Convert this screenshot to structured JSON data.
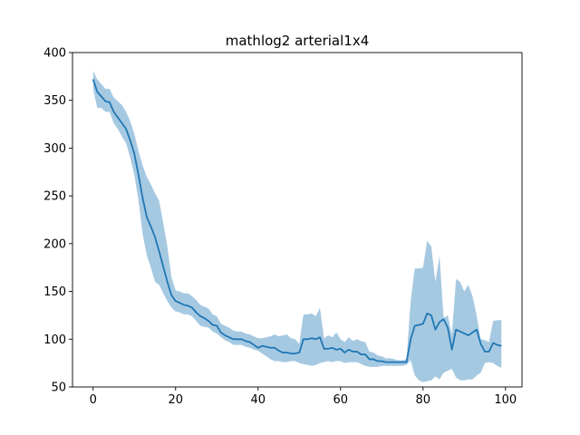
{
  "chart_data": {
    "type": "line",
    "title": "mathlog2 arterial1x4",
    "xlabel": "",
    "ylabel": "",
    "xlim": [
      -5,
      104
    ],
    "ylim": [
      50,
      400
    ],
    "grid": false,
    "xticks": [
      0,
      20,
      40,
      60,
      80,
      100
    ],
    "yticks": [
      50,
      100,
      150,
      200,
      250,
      300,
      350,
      400
    ],
    "line_color": "#1f77b4",
    "band_color": "#a6c9e2",
    "series": [
      {
        "x": [
          0,
          1,
          2,
          3,
          4,
          5,
          6,
          7,
          8,
          9,
          10,
          11,
          12,
          13,
          14,
          15,
          16,
          17,
          18,
          19,
          20,
          21,
          22,
          23,
          24,
          25,
          26,
          27,
          28,
          29,
          30,
          31,
          32,
          33,
          34,
          35,
          36,
          37,
          38,
          39,
          40,
          41,
          42,
          43,
          44,
          45,
          46,
          47,
          48,
          49,
          50,
          51,
          52,
          53,
          54,
          55,
          56,
          57,
          58,
          59,
          60,
          61,
          62,
          63,
          64,
          65,
          66,
          67,
          68,
          69,
          70,
          71,
          72,
          73,
          74,
          75,
          76,
          77,
          78,
          79,
          80,
          81,
          82,
          83,
          84,
          85,
          86,
          87,
          88,
          89,
          90,
          91,
          92,
          93,
          94,
          95,
          96,
          97,
          98,
          99
        ],
        "mean": [
          372,
          359,
          354,
          349,
          348,
          338,
          332,
          326,
          320,
          308,
          294,
          272,
          248,
          228,
          218,
          207,
          192,
          176,
          160,
          146,
          140,
          138,
          136,
          135,
          133,
          128,
          124,
          122,
          119,
          115,
          114,
          107,
          104,
          102,
          100,
          100,
          100,
          98,
          97,
          94,
          91,
          93,
          92,
          91,
          91,
          88,
          86,
          86,
          85,
          85,
          86,
          100,
          100,
          101,
          100,
          102,
          90,
          90,
          91,
          89,
          90,
          86,
          89,
          87,
          87,
          84,
          84,
          79,
          79,
          77,
          77,
          76,
          76,
          76,
          76,
          76,
          76,
          100,
          114,
          115,
          116,
          127,
          125,
          110,
          118,
          121,
          112,
          89,
          110,
          108,
          106,
          104,
          107,
          110,
          95,
          87,
          87,
          96,
          94,
          93
        ],
        "lower": [
          362,
          342,
          342,
          338,
          338,
          326,
          320,
          312,
          305,
          290,
          272,
          245,
          210,
          188,
          175,
          160,
          157,
          148,
          140,
          133,
          129,
          128,
          126,
          126,
          124,
          119,
          114,
          113,
          112,
          108,
          106,
          102,
          99,
          97,
          94,
          94,
          94,
          92,
          91,
          89,
          88,
          85,
          82,
          79,
          77,
          77,
          76,
          76,
          77,
          77,
          75,
          74,
          73,
          72,
          73,
          75,
          76,
          77,
          76,
          77,
          77,
          75,
          76,
          76,
          76,
          74,
          72,
          71,
          71,
          71,
          72,
          72,
          72,
          72,
          72,
          72,
          73,
          78,
          62,
          57,
          55,
          56,
          57,
          61,
          58,
          65,
          67,
          69,
          60,
          57,
          57,
          58,
          58,
          62,
          65,
          75,
          76,
          75,
          72,
          70
        ],
        "upper": [
          381,
          372,
          367,
          362,
          362,
          353,
          349,
          345,
          338,
          328,
          315,
          297,
          282,
          270,
          262,
          253,
          245,
          222,
          197,
          165,
          151,
          150,
          148,
          148,
          145,
          141,
          136,
          134,
          132,
          126,
          124,
          116,
          114,
          112,
          109,
          108,
          108,
          106,
          105,
          103,
          101,
          101,
          102,
          103,
          105,
          103,
          104,
          105,
          101,
          100,
          95,
          126,
          126,
          127,
          124,
          133,
          101,
          104,
          102,
          107,
          100,
          97,
          102,
          98,
          100,
          98,
          97,
          87,
          86,
          83,
          82,
          80,
          80,
          79,
          78,
          78,
          79,
          140,
          174,
          174,
          175,
          203,
          197,
          160,
          187,
          122,
          125,
          105,
          163,
          160,
          150,
          157,
          145,
          125,
          100,
          99,
          97,
          119,
          120,
          120
        ]
      }
    ]
  }
}
